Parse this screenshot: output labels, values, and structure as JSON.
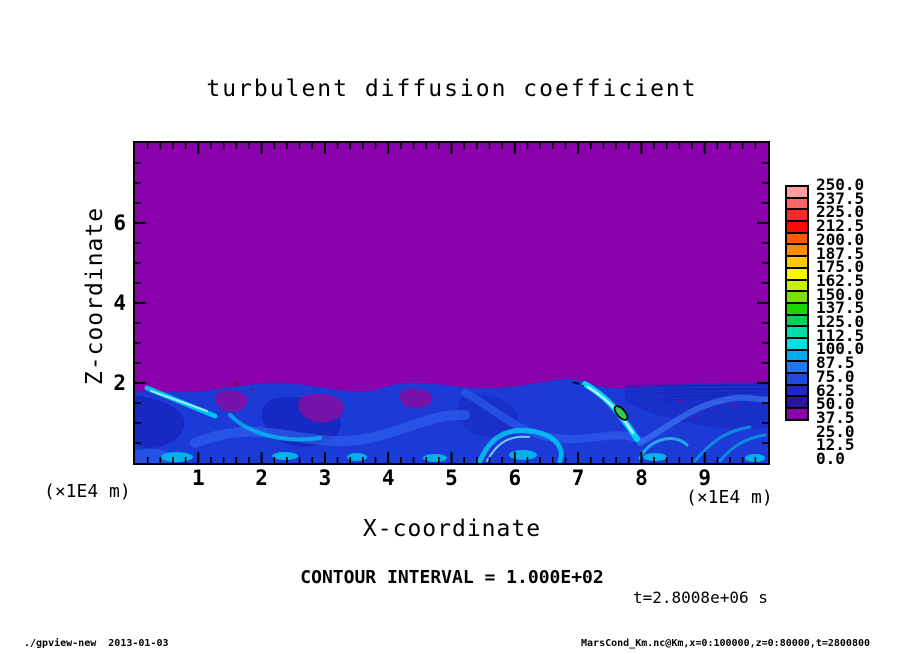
{
  "title": "turbulent diffusion coefficient",
  "plot": {
    "x_axis": {
      "label": "X-coordinate",
      "unit_label": "(×1E4 m)",
      "major_ticks": [
        1,
        2,
        3,
        4,
        5,
        6,
        7,
        8,
        9
      ],
      "minor_step": 0.2,
      "range": [
        0,
        10
      ]
    },
    "z_axis": {
      "label": "Z-coordinate",
      "unit_label": "(×1E4 m)",
      "major_ticks": [
        2,
        4,
        6
      ],
      "minor_step": 0.5,
      "range": [
        0,
        8
      ]
    }
  },
  "colorbar": {
    "tick_labels": [
      "250.0",
      "237.5",
      "225.0",
      "212.5",
      "200.0",
      "187.5",
      "175.0",
      "162.5",
      "150.0",
      "137.5",
      "125.0",
      "112.5",
      "100.0",
      "87.5",
      "75.0",
      "62.5",
      "50.0",
      "37.5",
      "25.0",
      "12.5",
      "0.0"
    ],
    "colors_top_to_bottom": [
      "#FFA0A0",
      "#FF6464",
      "#FF2828",
      "#FA0A00",
      "#FF5A00",
      "#FF8C00",
      "#FFC800",
      "#FFF500",
      "#C8F000",
      "#78E100",
      "#1ED200",
      "#00D25A",
      "#00DCAA",
      "#00E1E1",
      "#00AAF0",
      "#1E78F0",
      "#1E4BDC",
      "#1E28C8",
      "#2A149B",
      "#8A00AA"
    ]
  },
  "annotations": {
    "contour_interval": "CONTOUR INTERVAL = 1.000E+02",
    "time_stamp": "t=2.8008e+06 s"
  },
  "footer": {
    "left": "./gpview-new  2013-01-03",
    "right": "MarsCond_Km.nc@Km,x=0:100000,z=0:80000,t=2800800"
  },
  "field_colors": {
    "background_purple": "#8A00AA",
    "layer_base_blue": "#1B3AD6",
    "cyan_filament": "#00D4F4",
    "green_core": "#2FCE4E"
  },
  "chart_data": {
    "type": "heatmap",
    "title": "turbulent diffusion coefficient",
    "xlabel": "X-coordinate (×1E4 m)",
    "ylabel": "Z-coordinate (×1E4 m)",
    "x_range_m": [
      0,
      100000
    ],
    "z_range_m": [
      0,
      80000
    ],
    "x_tick_values_1e4m": [
      1,
      2,
      3,
      4,
      5,
      6,
      7,
      8,
      9
    ],
    "z_tick_values_1e4m": [
      2,
      4,
      6
    ],
    "time_s": 2800800,
    "time_label": "t=2.8008e+06 s",
    "contour_interval": 100.0,
    "color_levels": [
      0.0,
      12.5,
      25.0,
      37.5,
      50.0,
      62.5,
      75.0,
      87.5,
      100.0,
      112.5,
      125.0,
      137.5,
      150.0,
      162.5,
      175.0,
      187.5,
      200.0,
      212.5,
      225.0,
      237.5,
      250.0
    ],
    "legend_position": "right",
    "grid": false,
    "field_summary": [
      {
        "region": "z above ~20000 m (upper ~75% of domain)",
        "value_bin": "0.0-12.5 (purple, near-zero diffusion)"
      },
      {
        "region": "turbulent boundary layer z below ~20000 m",
        "value_bin": "mostly 25-75 (blues) with cyan filaments reaching ~87.5-100"
      },
      {
        "region": "bright slanted filament near x~60000-65000 m, z~10000-15000 m",
        "value_bin": ">100 green core enclosed by the 1.000E+02 contour line"
      },
      {
        "region": "small purple pockets embedded in the layer (x~24000-44000 m)",
        "value_bin": "0.0-12.5"
      }
    ]
  }
}
